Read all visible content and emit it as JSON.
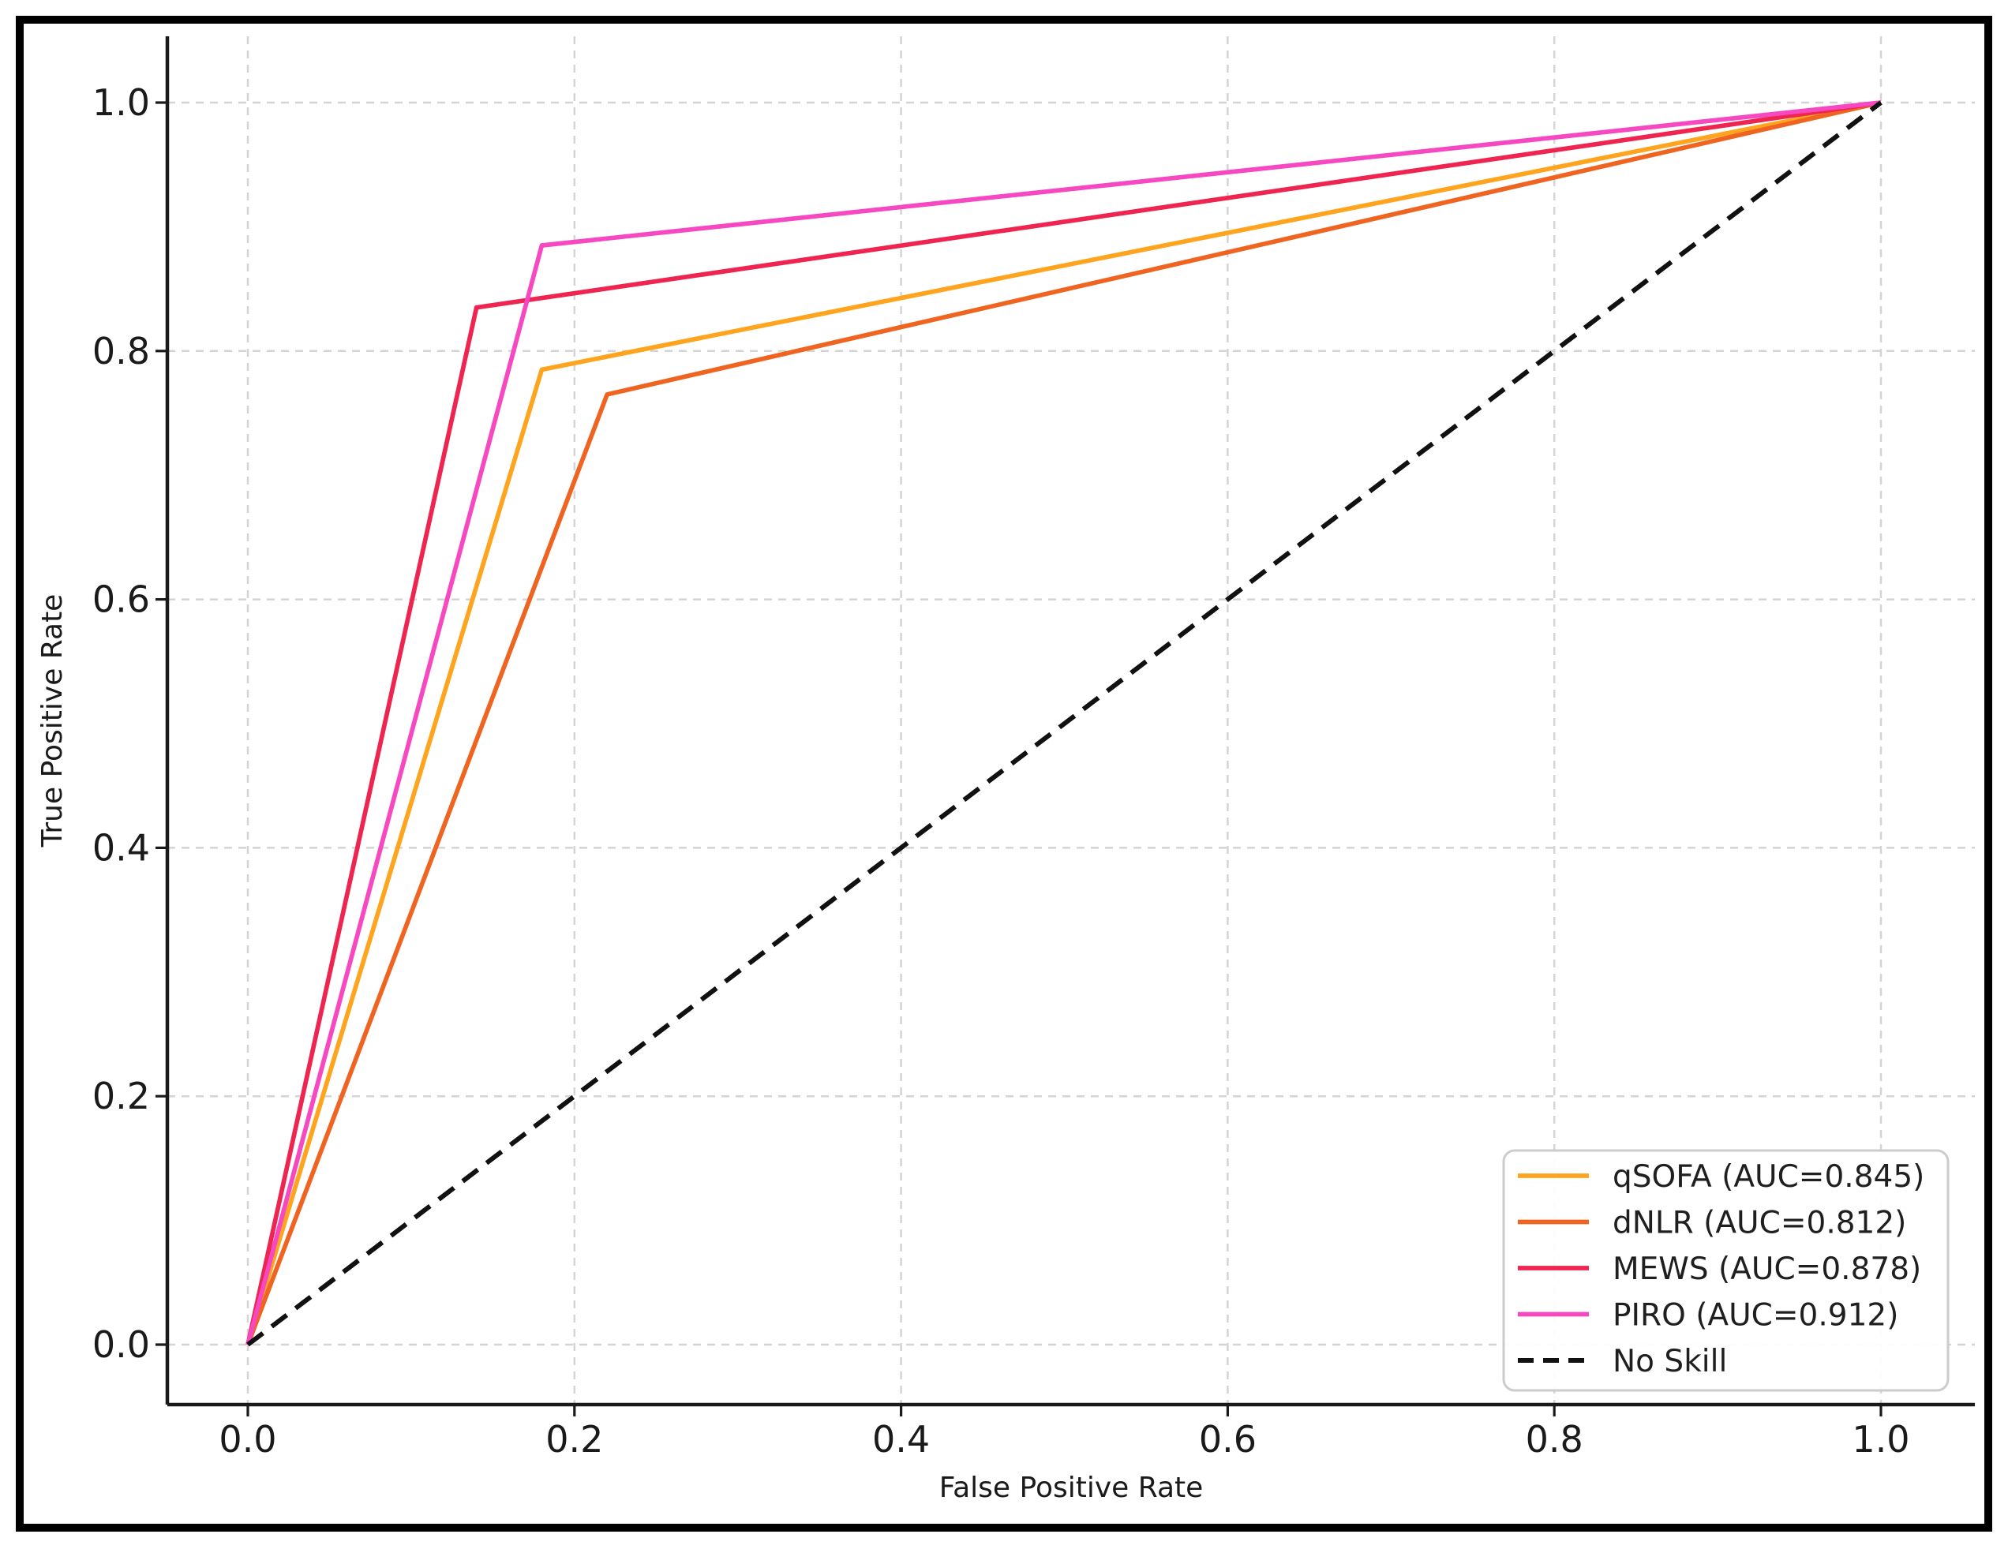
{
  "figure": {
    "background_color": "#ffffff",
    "border_color": "#000000"
  },
  "chart_data": {
    "type": "line",
    "subtype": "roc-curve",
    "title": "",
    "xlabel": "False Positive Rate",
    "ylabel": "True Positive Rate",
    "xlim": [
      -0.05,
      1.06
    ],
    "ylim": [
      -0.05,
      1.04
    ],
    "x_ticks": [
      0.0,
      0.2,
      0.4,
      0.6,
      0.8,
      1.0
    ],
    "y_ticks": [
      0.0,
      0.2,
      0.4,
      0.6,
      0.8,
      1.0
    ],
    "x_tick_labels": [
      "0.0",
      "0.2",
      "0.4",
      "0.6",
      "0.8",
      "1.0"
    ],
    "y_tick_labels": [
      "0.0",
      "0.2",
      "0.4",
      "0.6",
      "0.8",
      "1.0"
    ],
    "grid": "dashed",
    "grid_color": "#d4d4d4",
    "axis_color": "#1a1a1a",
    "legend_position": "lower right",
    "series": [
      {
        "name": "qSOFA",
        "auc": 0.845,
        "label": "qSOFA (AUC=0.845)",
        "color": "#FFA41E",
        "style": "solid",
        "points": [
          [
            0.0,
            0.0
          ],
          [
            0.18,
            0.785
          ],
          [
            1.0,
            1.0
          ]
        ]
      },
      {
        "name": "dNLR",
        "auc": 0.812,
        "label": "dNLR (AUC=0.812)",
        "color": "#EE6420",
        "style": "solid",
        "points": [
          [
            0.0,
            0.0
          ],
          [
            0.22,
            0.765
          ],
          [
            1.0,
            1.0
          ]
        ]
      },
      {
        "name": "MEWS",
        "auc": 0.878,
        "label": "MEWS (AUC=0.878)",
        "color": "#EE2451",
        "style": "solid",
        "points": [
          [
            0.0,
            0.0
          ],
          [
            0.14,
            0.835
          ],
          [
            1.0,
            1.0
          ]
        ]
      },
      {
        "name": "PIRO",
        "auc": 0.912,
        "label": "PIRO (AUC=0.912)",
        "color": "#F649C1",
        "style": "solid",
        "points": [
          [
            0.0,
            0.0
          ],
          [
            0.18,
            0.885
          ],
          [
            1.0,
            1.0
          ]
        ]
      },
      {
        "name": "No Skill",
        "label": "No Skill",
        "color": "#111111",
        "style": "dashed",
        "points": [
          [
            0.0,
            0.0
          ],
          [
            1.0,
            1.0
          ]
        ]
      }
    ]
  }
}
